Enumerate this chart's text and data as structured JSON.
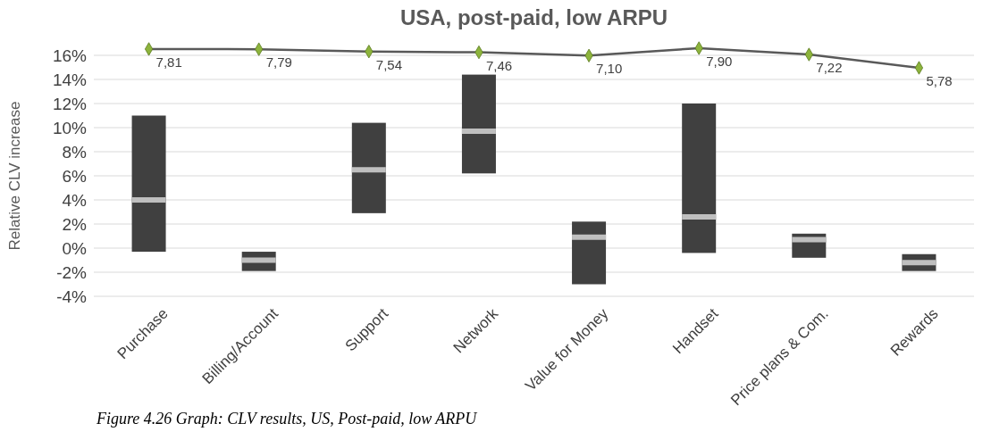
{
  "chart_data": {
    "type": "box",
    "title": "USA, post-paid, low ARPU",
    "ylabel": "Relative CLV increase",
    "categories": [
      "Purchase",
      "Billing/Account",
      "Support",
      "Network",
      "Value for Money",
      "Handset",
      "Price plans & Com.",
      "Rewards"
    ],
    "boxes": [
      {
        "low": -0.3,
        "q1": -0.3,
        "median": 4,
        "q3": 11,
        "high": 11
      },
      {
        "low": -1.9,
        "q1": -1.9,
        "median": -1,
        "q3": -0.3,
        "high": -0.3
      },
      {
        "low": 2.9,
        "q1": 2.9,
        "median": 6.5,
        "q3": 10.4,
        "high": 10.4
      },
      {
        "low": 6.2,
        "q1": 6.2,
        "median": 9.7,
        "q3": 14.4,
        "high": 14.4
      },
      {
        "low": -3,
        "q1": -3,
        "median": 0.9,
        "q3": 2.2,
        "high": 2.2
      },
      {
        "low": -0.4,
        "q1": -0.4,
        "median": 2.6,
        "q3": 12,
        "high": 12
      },
      {
        "low": -0.8,
        "q1": -0.8,
        "median": 0.7,
        "q3": 1.2,
        "high": 1.2
      },
      {
        "low": -1.9,
        "q1": -1.9,
        "median": -1.2,
        "q3": -0.5,
        "high": -0.5
      }
    ],
    "series": [
      {
        "type": "line",
        "axis": "y2",
        "color": "#595959",
        "marker": "diamond",
        "values": [
          7.81,
          7.79,
          7.54,
          7.46,
          7.1,
          7.9,
          7.22,
          5.78
        ],
        "value_labels": [
          "7,81",
          "7,79",
          "7,54",
          "7,46",
          "7,10",
          "7,90",
          "7,22",
          "5,78"
        ]
      }
    ],
    "color": "#404040",
    "ylim": [
      -4,
      16
    ],
    "yticks": [
      {
        "value": -4,
        "label": "-4%"
      },
      {
        "value": -2,
        "label": "-2%"
      },
      {
        "value": 0,
        "label": "0%"
      },
      {
        "value": 2,
        "label": "2%"
      },
      {
        "value": 4,
        "label": "4%"
      },
      {
        "value": 6,
        "label": "6%"
      },
      {
        "value": 8,
        "label": "8%"
      },
      {
        "value": 10,
        "label": "10%"
      },
      {
        "value": 12,
        "label": "12%"
      },
      {
        "value": 14,
        "label": "14%"
      },
      {
        "value": 16,
        "label": "16%"
      }
    ],
    "tick_labels": "xy",
    "grid": "y",
    "annotations": [
      "Figure 4.26 Graph: CLV results, US, Post-paid, low ARPU"
    ]
  }
}
